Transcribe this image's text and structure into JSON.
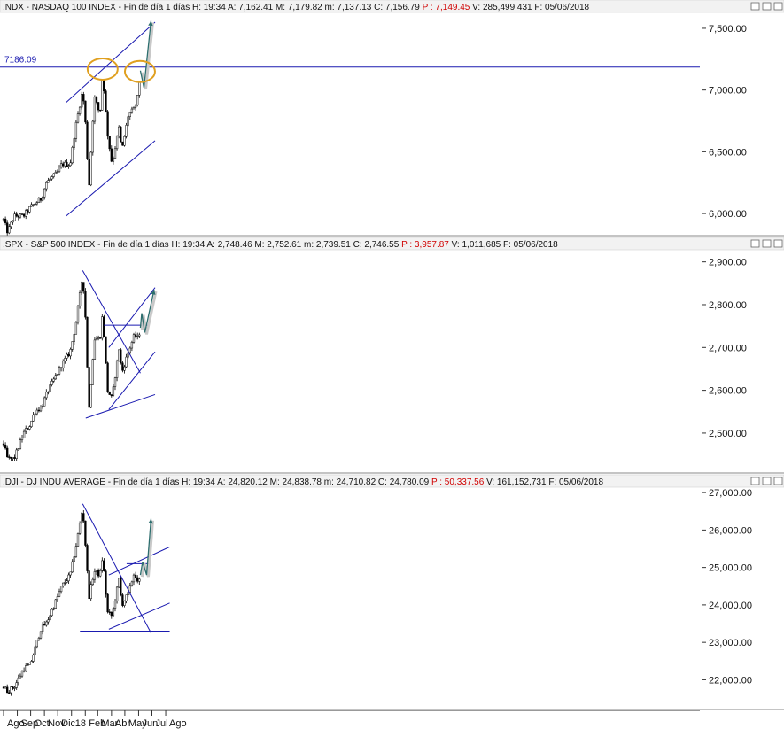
{
  "panels": [
    {
      "id": "ndx",
      "header": {
        "symbol": ".NDX - NASDAQ 100 INDEX",
        "period": "Fin de día 1 días",
        "H": "19:34",
        "A": "7,162.41",
        "M": "7,179.82",
        "m": "7,137.13",
        "C": "7,156.79",
        "P": "7,149.45",
        "V": "285,499,431",
        "F": "05/06/2018"
      },
      "y_ticks": [
        "7,500.00",
        "7,000.00",
        "6,500.00",
        "6,000.00"
      ],
      "level_label": "7186.09"
    },
    {
      "id": "spx",
      "header": {
        "symbol": ".SPX - S&P 500 INDEX",
        "period": "Fin de día 1 días",
        "H": "19:34",
        "A": "2,748.46",
        "M": "2,752.61",
        "m": "2,739.51",
        "C": "2,746.55",
        "P": "3,957.87",
        "V": "1,011,685",
        "F": "05/06/2018"
      },
      "y_ticks": [
        "2,900.00",
        "2,800.00",
        "2,700.00",
        "2,600.00",
        "2,500.00"
      ]
    },
    {
      "id": "dji",
      "header": {
        "symbol": ".DJI - DJ INDU AVERAGE",
        "period": "Fin de día 1 días",
        "H": "19:34",
        "A": "24,820.12",
        "M": "24,838.78",
        "m": "24,710.82",
        "C": "24,780.09",
        "P": "50,337.56",
        "V": "161,152,731",
        "F": "05/06/2018"
      },
      "y_ticks": [
        "27,000.00",
        "26,000.00",
        "25,000.00",
        "24,000.00",
        "23,000.00",
        "22,000.00"
      ]
    }
  ],
  "x_axis": {
    "labels": [
      "Ago",
      "Sep",
      "Oct",
      "Nov",
      "Dic",
      "18",
      "Feb",
      "Mar",
      "Abr",
      "May",
      "Jun",
      "Jul",
      "Ago"
    ]
  },
  "chart_data": [
    {
      "type": "candlestick",
      "title": ".NDX - NASDAQ 100 INDEX",
      "ylim": [
        5850,
        7600
      ],
      "anchors": [
        [
          "2017-08-01",
          5950
        ],
        [
          "2017-08-10",
          5850
        ],
        [
          "2017-08-25",
          5980
        ],
        [
          "2017-09-15",
          5980
        ],
        [
          "2017-09-30",
          6050
        ],
        [
          "2017-10-10",
          6080
        ],
        [
          "2017-10-25",
          6120
        ],
        [
          "2017-11-05",
          6250
        ],
        [
          "2017-11-30",
          6330
        ],
        [
          "2017-12-10",
          6400
        ],
        [
          "2017-12-29",
          6400
        ],
        [
          "2018-01-10",
          6700
        ],
        [
          "2018-01-26",
          7000
        ],
        [
          "2018-02-02",
          6700
        ],
        [
          "2018-02-09",
          6200
        ],
        [
          "2018-02-21",
          6950
        ],
        [
          "2018-03-06",
          6800
        ],
        [
          "2018-03-12",
          7150
        ],
        [
          "2018-03-23",
          6650
        ],
        [
          "2018-04-02",
          6400
        ],
        [
          "2018-04-18",
          6700
        ],
        [
          "2018-04-24",
          6500
        ],
        [
          "2018-05-09",
          6800
        ],
        [
          "2018-05-23",
          6850
        ],
        [
          "2018-05-31",
          6960
        ],
        [
          "2018-06-05",
          7157
        ]
      ],
      "resistance_level": 7186.09,
      "channel_upper": [
        [
          "2017-12-20",
          6900
        ],
        [
          "2018-07-08",
          7550
        ]
      ],
      "channel_lower": [
        [
          "2017-12-20",
          5980
        ],
        [
          "2018-07-08",
          6590
        ]
      ],
      "projection": [
        [
          "2018-06-05",
          7157
        ],
        [
          "2018-06-13",
          7020
        ],
        [
          "2018-06-29",
          7560
        ]
      ],
      "highlights": [
        [
          "2018-03-12",
          7170
        ],
        [
          "2018-06-04",
          7150
        ]
      ]
    },
    {
      "type": "candlestick",
      "title": ".SPX - S&P 500 INDEX",
      "ylim": [
        2415,
        2920
      ],
      "anchors": [
        [
          "2017-08-01",
          2475
        ],
        [
          "2017-08-10",
          2440
        ],
        [
          "2017-08-25",
          2440
        ],
        [
          "2017-09-15",
          2500
        ],
        [
          "2017-09-30",
          2520
        ],
        [
          "2017-10-10",
          2550
        ],
        [
          "2017-10-25",
          2560
        ],
        [
          "2017-11-05",
          2590
        ],
        [
          "2017-11-30",
          2640
        ],
        [
          "2017-12-10",
          2660
        ],
        [
          "2017-12-29",
          2690
        ],
        [
          "2018-01-10",
          2750
        ],
        [
          "2018-01-26",
          2870
        ],
        [
          "2018-02-02",
          2760
        ],
        [
          "2018-02-09",
          2550
        ],
        [
          "2018-02-21",
          2720
        ],
        [
          "2018-03-06",
          2720
        ],
        [
          "2018-03-12",
          2780
        ],
        [
          "2018-03-23",
          2600
        ],
        [
          "2018-04-02",
          2580
        ],
        [
          "2018-04-18",
          2700
        ],
        [
          "2018-04-24",
          2640
        ],
        [
          "2018-05-09",
          2690
        ],
        [
          "2018-05-23",
          2730
        ],
        [
          "2018-05-31",
          2720
        ],
        [
          "2018-06-05",
          2746.55
        ]
      ],
      "resistance_level": 2752,
      "triangle_upper": [
        [
          "2018-01-26",
          2880
        ],
        [
          "2018-06-05",
          2640
        ]
      ],
      "triangle_lower": [
        [
          "2018-02-02",
          2535
        ],
        [
          "2018-07-08",
          2590
        ]
      ],
      "channel_upper": [
        [
          "2018-03-26",
          2700
        ],
        [
          "2018-07-08",
          2840
        ]
      ],
      "channel_lower": [
        [
          "2018-03-26",
          2555
        ],
        [
          "2018-07-08",
          2690
        ]
      ],
      "projection": [
        [
          "2018-06-05",
          2746
        ],
        [
          "2018-06-08",
          2780
        ],
        [
          "2018-06-15",
          2735
        ],
        [
          "2018-07-06",
          2835
        ]
      ]
    },
    {
      "type": "candlestick",
      "title": ".DJI - DJ INDU AVERAGE",
      "ylim": [
        21300,
        27050
      ],
      "anchors": [
        [
          "2017-08-01",
          21800
        ],
        [
          "2017-08-10",
          21700
        ],
        [
          "2017-08-25",
          21800
        ],
        [
          "2017-09-15",
          22300
        ],
        [
          "2017-09-30",
          22400
        ],
        [
          "2017-10-10",
          22800
        ],
        [
          "2017-10-25",
          23400
        ],
        [
          "2017-11-05",
          23500
        ],
        [
          "2017-11-30",
          24200
        ],
        [
          "2017-12-10",
          24500
        ],
        [
          "2017-12-29",
          24800
        ],
        [
          "2018-01-10",
          25500
        ],
        [
          "2018-01-26",
          26600
        ],
        [
          "2018-02-02",
          25500
        ],
        [
          "2018-02-09",
          24200
        ],
        [
          "2018-02-21",
          24900
        ],
        [
          "2018-03-06",
          24800
        ],
        [
          "2018-03-12",
          25300
        ],
        [
          "2018-03-23",
          23800
        ],
        [
          "2018-04-02",
          23700
        ],
        [
          "2018-04-18",
          24700
        ],
        [
          "2018-04-24",
          24000
        ],
        [
          "2018-05-09",
          24300
        ],
        [
          "2018-05-23",
          24900
        ],
        [
          "2018-05-31",
          24500
        ],
        [
          "2018-06-05",
          24780
        ]
      ],
      "support_level": 23300,
      "triangle_upper": [
        [
          "2018-01-26",
          26700
        ],
        [
          "2018-06-29",
          23250
        ]
      ],
      "resistance_short": [
        [
          "2018-05-05",
          25100
        ],
        [
          "2018-06-25",
          25100
        ]
      ],
      "channel_upper": [
        [
          "2018-03-26",
          24800
        ],
        [
          "2018-08-10",
          25550
        ]
      ],
      "channel_lower": [
        [
          "2018-03-26",
          23350
        ],
        [
          "2018-08-10",
          24050
        ]
      ],
      "projection": [
        [
          "2018-06-05",
          24800
        ],
        [
          "2018-06-10",
          25150
        ],
        [
          "2018-06-19",
          24800
        ],
        [
          "2018-06-29",
          26300
        ]
      ]
    }
  ]
}
